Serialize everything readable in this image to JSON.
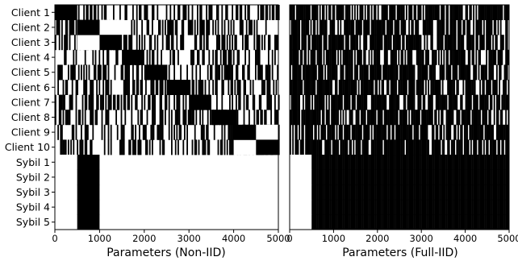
{
  "chart_data": [
    {
      "type": "heatmap",
      "panel": "left",
      "xlabel": "Parameters (Non-IID)",
      "xlim": [
        0,
        5000
      ],
      "xticks": [
        0,
        1000,
        2000,
        3000,
        4000,
        5000
      ],
      "rows": [
        "Client 1",
        "Client 2",
        "Client 3",
        "Client 4",
        "Client 5",
        "Client 6",
        "Client 7",
        "Client 8",
        "Client 9",
        "Client 10",
        "Sybil 1",
        "Sybil 2",
        "Sybil 3",
        "Sybil 4",
        "Sybil 5"
      ],
      "values_description": "binary parameter-selection pattern",
      "solid_black_blocks": [
        {
          "row": "Client 1",
          "range": [
            0,
            500
          ]
        },
        {
          "row": "Client 2",
          "range": [
            500,
            1000
          ]
        },
        {
          "row": "Client 3",
          "range": [
            1000,
            1500
          ]
        },
        {
          "row": "Client 4",
          "range": [
            1500,
            2000
          ]
        },
        {
          "row": "Client 5",
          "range": [
            2000,
            2500
          ]
        },
        {
          "row": "Client 6",
          "range": [
            2500,
            3000
          ]
        },
        {
          "row": "Client 7",
          "range": [
            3000,
            3500
          ]
        },
        {
          "row": "Client 8",
          "range": [
            3500,
            4000
          ]
        },
        {
          "row": "Client 9",
          "range": [
            4000,
            4500
          ]
        },
        {
          "row": "Client 10",
          "range": [
            4500,
            5000
          ]
        },
        {
          "row": "Sybil 1-5",
          "range": [
            500,
            1000
          ]
        }
      ],
      "white_blocks": [
        {
          "row": "Client 2",
          "range": [
            1000,
            1500
          ]
        },
        {
          "row": "Client 3",
          "range": [
            500,
            1000
          ]
        },
        {
          "row": "Client 9",
          "range": [
            4500,
            5000
          ]
        },
        {
          "row": "Client 10",
          "range": [
            4000,
            4500
          ]
        },
        {
          "row": "Sybil 1-5",
          "range": [
            0,
            500
          ]
        }
      ]
    },
    {
      "type": "heatmap",
      "panel": "right",
      "xlabel": "Parameters (Full-IID)",
      "xlim": [
        0,
        5000
      ],
      "xticks": [
        0,
        1000,
        2000,
        3000,
        4000,
        5000
      ],
      "rows": [
        "Client 1",
        "Client 2",
        "Client 3",
        "Client 4",
        "Client 5",
        "Client 6",
        "Client 7",
        "Client 8",
        "Client 9",
        "Client 10",
        "Sybil 1",
        "Sybil 2",
        "Sybil 3",
        "Sybil 4",
        "Sybil 5"
      ],
      "values_description": "binary parameter-selection pattern",
      "white_blocks": [
        {
          "row": "Sybil 1-5",
          "range": [
            0,
            500
          ]
        }
      ]
    }
  ]
}
